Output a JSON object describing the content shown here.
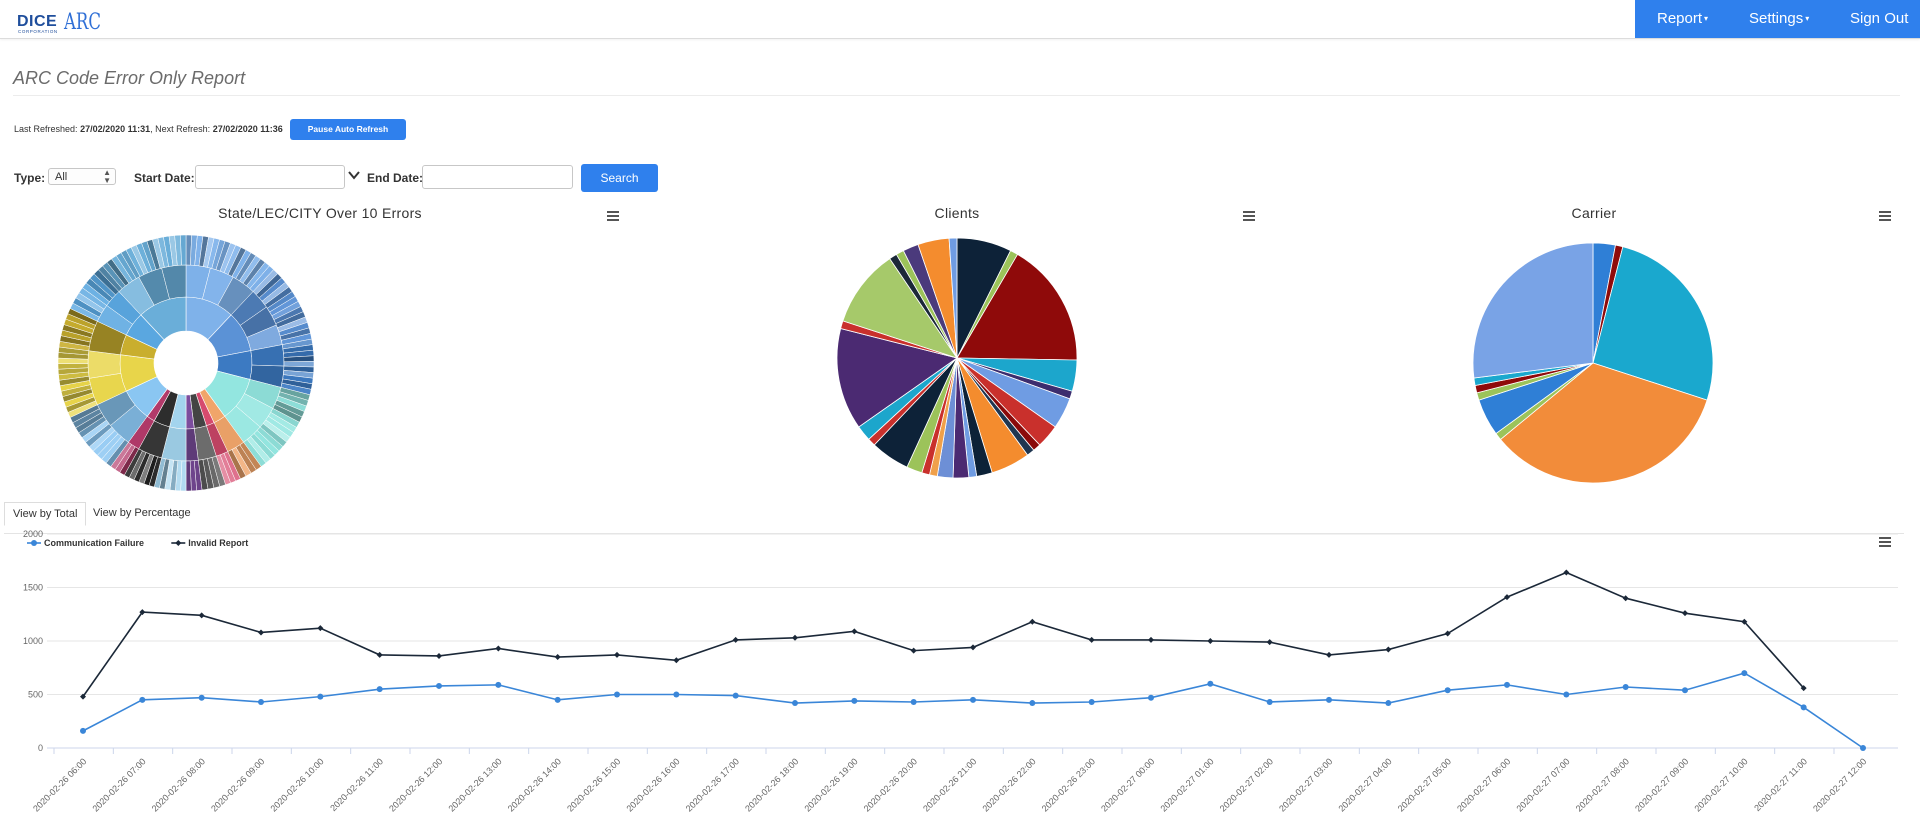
{
  "navbar": {
    "brand": "DICE",
    "brand_sub": "CORPORATION",
    "brand_product": "ARC",
    "menu": [
      {
        "label": "Report",
        "caret": "▾"
      },
      {
        "label": "Settings",
        "caret": "▾"
      },
      {
        "label": "Sign Out"
      }
    ]
  },
  "page": {
    "title": "ARC Code Error Only Report"
  },
  "refresh": {
    "last_label": "Last Refreshed:",
    "last_value": "27/02/2020 11:31",
    "next_label": ", Next Refresh:",
    "next_value": "27/02/2020 11:36",
    "pause_button": "Pause Auto Refresh"
  },
  "filters": {
    "type_label": "Type:",
    "type_value": "All",
    "start_label": "Start Date:",
    "start_value": "",
    "end_label": "End Date:",
    "end_value": "",
    "search_button": "Search"
  },
  "charts": {
    "sunburst_title": "State/LEC/CITY Over 10 Errors",
    "clients_title": "Clients",
    "carrier_title": "Carrier",
    "menu_icon": "hamburger-icon"
  },
  "tabs": [
    {
      "label": "View by Total",
      "active": true
    },
    {
      "label": "View by Percentage",
      "active": false
    }
  ],
  "palette": {
    "accent": "#2f80ed",
    "series_blue": "#3a86d8",
    "series_dark": "#1b2838"
  },
  "chart_data": [
    {
      "type": "pie",
      "variant": "sunburst",
      "title": "State/LEC/CITY Over 10 Errors",
      "slices": [
        {
          "value": 12,
          "color": "#7fb2ea"
        },
        {
          "value": 10,
          "color": "#5b92d6"
        },
        {
          "value": 7,
          "color": "#3c7ac2"
        },
        {
          "value": 11,
          "color": "#93e6e0"
        },
        {
          "value": 3,
          "color": "#f0a56a"
        },
        {
          "value": 2,
          "color": "#d64a6e"
        },
        {
          "value": 3,
          "color": "#444444"
        },
        {
          "value": 2,
          "color": "#7c4d9e"
        },
        {
          "value": 4,
          "color": "#a3d4ee"
        },
        {
          "value": 4,
          "color": "#2d2d2d"
        },
        {
          "value": 2,
          "color": "#b23a6a"
        },
        {
          "value": 8,
          "color": "#8ac6f2"
        },
        {
          "value": 9,
          "color": "#e8d54a"
        },
        {
          "value": 5,
          "color": "#c9ae2e"
        },
        {
          "value": 6,
          "color": "#5aa7e0"
        },
        {
          "value": 12,
          "color": "#6aaed9"
        }
      ]
    },
    {
      "type": "pie",
      "title": "Clients",
      "slices": [
        {
          "value": 7,
          "color": "#0d2238"
        },
        {
          "value": 1,
          "color": "#9cc35a"
        },
        {
          "value": 16,
          "color": "#8f0a0a"
        },
        {
          "value": 4,
          "color": "#1ca6cc"
        },
        {
          "value": 1,
          "color": "#3c2d6e"
        },
        {
          "value": 4,
          "color": "#6f9ce3"
        },
        {
          "value": 3,
          "color": "#c9302c"
        },
        {
          "value": 1,
          "color": "#8b0a0a"
        },
        {
          "value": 1,
          "color": "#1f3650"
        },
        {
          "value": 5,
          "color": "#f48c2e"
        },
        {
          "value": 2,
          "color": "#0d2238"
        },
        {
          "value": 1,
          "color": "#6f9ce3"
        },
        {
          "value": 2,
          "color": "#4b2a72"
        },
        {
          "value": 2,
          "color": "#6d8fd6"
        },
        {
          "value": 1,
          "color": "#f0a04a"
        },
        {
          "value": 1,
          "color": "#c9302c"
        },
        {
          "value": 2,
          "color": "#9cc35a"
        },
        {
          "value": 5,
          "color": "#0d2238"
        },
        {
          "value": 1,
          "color": "#c9302c"
        },
        {
          "value": 2,
          "color": "#1ca6cc"
        },
        {
          "value": 13,
          "color": "#4b2a72"
        },
        {
          "value": 1,
          "color": "#c9302c"
        },
        {
          "value": 10,
          "color": "#a6c96a"
        },
        {
          "value": 1,
          "color": "#1b2838"
        },
        {
          "value": 1,
          "color": "#9cc35a"
        },
        {
          "value": 2,
          "color": "#4b3a7c"
        },
        {
          "value": 4,
          "color": "#f48c2e"
        },
        {
          "value": 1,
          "color": "#6f9ce3"
        }
      ]
    },
    {
      "type": "pie",
      "title": "Carrier",
      "slices": [
        {
          "value": 3,
          "color": "#2f7fd6"
        },
        {
          "value": 1,
          "color": "#8f0a0a"
        },
        {
          "value": 26,
          "color": "#1aa8ce"
        },
        {
          "value": 34,
          "color": "#f28c3a"
        },
        {
          "value": 1,
          "color": "#9cc35a"
        },
        {
          "value": 5,
          "color": "#2f7fd6"
        },
        {
          "value": 1,
          "color": "#9cc35a"
        },
        {
          "value": 1,
          "color": "#8f0a0a"
        },
        {
          "value": 1,
          "color": "#1aa8ce"
        },
        {
          "value": 27,
          "color": "#79a3e6"
        }
      ]
    },
    {
      "type": "line",
      "legend": "top-left",
      "ylim": [
        0,
        2000
      ],
      "yticks": [
        0,
        500,
        1000,
        1500,
        2000
      ],
      "x": [
        "2020-02-26 06:00",
        "2020-02-26 07:00",
        "2020-02-26 08:00",
        "2020-02-26 09:00",
        "2020-02-26 10:00",
        "2020-02-26 11:00",
        "2020-02-26 12:00",
        "2020-02-26 13:00",
        "2020-02-26 14:00",
        "2020-02-26 15:00",
        "2020-02-26 16:00",
        "2020-02-26 17:00",
        "2020-02-26 18:00",
        "2020-02-26 19:00",
        "2020-02-26 20:00",
        "2020-02-26 21:00",
        "2020-02-26 22:00",
        "2020-02-26 23:00",
        "2020-02-27 00:00",
        "2020-02-27 01:00",
        "2020-02-27 02:00",
        "2020-02-27 03:00",
        "2020-02-27 04:00",
        "2020-02-27 05:00",
        "2020-02-27 06:00",
        "2020-02-27 07:00",
        "2020-02-27 08:00",
        "2020-02-27 09:00",
        "2020-02-27 10:00",
        "2020-02-27 11:00",
        "2020-02-27 12:00"
      ],
      "series": [
        {
          "name": "Communication Failure",
          "color": "#3a86d8",
          "values": [
            160,
            450,
            470,
            430,
            480,
            550,
            580,
            590,
            450,
            500,
            500,
            490,
            420,
            440,
            430,
            450,
            420,
            430,
            470,
            600,
            430,
            450,
            420,
            540,
            590,
            500,
            570,
            540,
            700,
            380,
            0
          ]
        },
        {
          "name": "Invalid Report",
          "color": "#1b2838",
          "values": [
            480,
            1270,
            1240,
            1080,
            1120,
            870,
            860,
            930,
            850,
            870,
            820,
            1010,
            1030,
            1090,
            910,
            940,
            1180,
            1010,
            1010,
            1000,
            990,
            870,
            920,
            1070,
            1410,
            1640,
            1400,
            1260,
            1180,
            560,
            null
          ]
        }
      ]
    }
  ]
}
